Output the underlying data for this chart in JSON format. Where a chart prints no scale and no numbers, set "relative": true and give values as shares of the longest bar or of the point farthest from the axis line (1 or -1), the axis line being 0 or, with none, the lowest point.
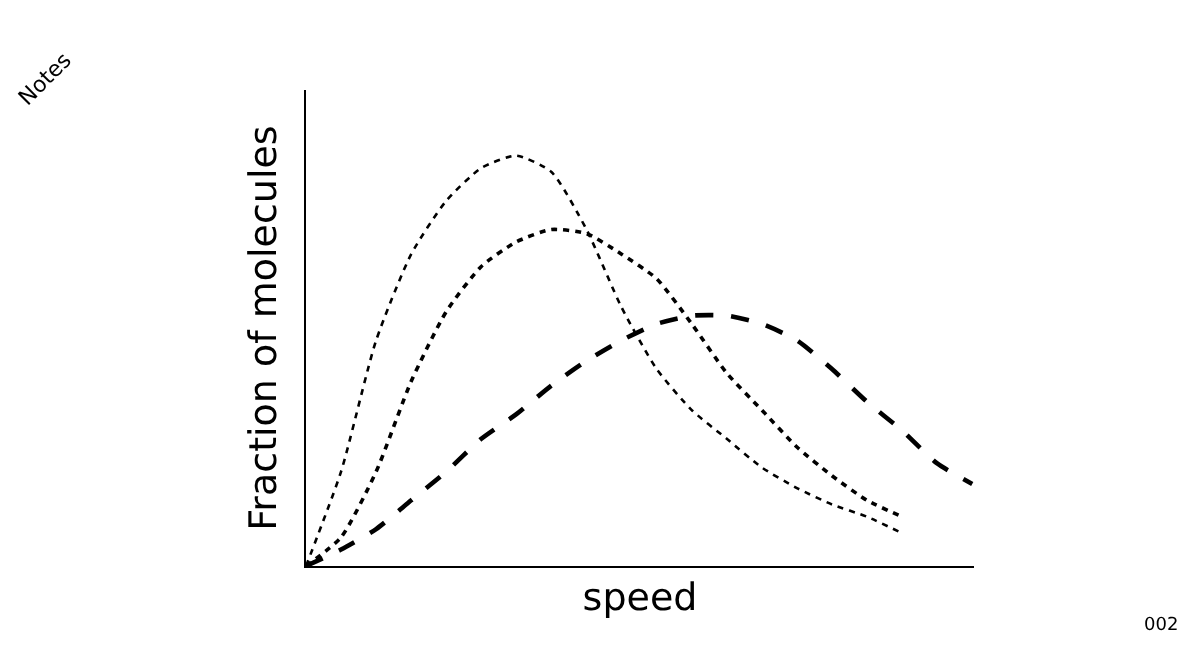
{
  "chart_data": {
    "type": "line",
    "relative": true,
    "xlabel": "speed",
    "ylabel": "Fraction of molecules",
    "categories": [
      null,
      null,
      null,
      null,
      null,
      null,
      null,
      null,
      null,
      null,
      null,
      null,
      null,
      null,
      null,
      null,
      null,
      null,
      null,
      null
    ],
    "series": [
      {
        "color": "#000000",
        "line_style": "dotted",
        "values": [
          0,
          0.23,
          0.55,
          0.76,
          0.89,
          0.97,
          1.0,
          0.96,
          0.82,
          0.63,
          0.48,
          0.38,
          0.31,
          0.24,
          0.19,
          0.15,
          0.12,
          0.08,
          null,
          null
        ]
      },
      {
        "color": "#000000",
        "line_style": "dotted",
        "values": [
          0,
          0.07,
          0.23,
          0.45,
          0.62,
          0.73,
          0.79,
          0.82,
          0.81,
          0.76,
          0.7,
          0.59,
          0.47,
          0.38,
          0.29,
          0.22,
          0.16,
          0.12,
          null,
          null
        ]
      },
      {
        "color": "#000000",
        "line_style": "dashed",
        "values": [
          0,
          0.04,
          0.09,
          0.16,
          0.23,
          0.31,
          0.37,
          0.44,
          0.5,
          0.55,
          0.59,
          0.61,
          0.61,
          0.59,
          0.55,
          0.48,
          0.4,
          0.33,
          0.25,
          0.2
        ]
      }
    ],
    "annotations": [
      "Notes",
      "002"
    ],
    "marker": "none"
  }
}
